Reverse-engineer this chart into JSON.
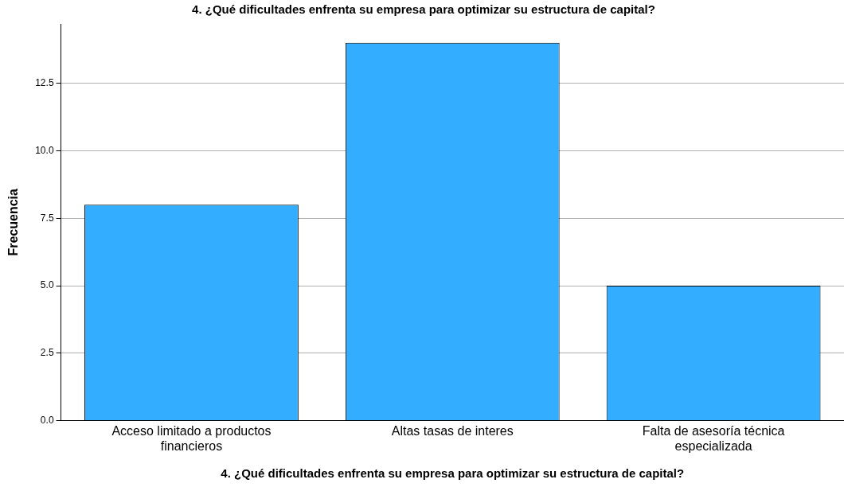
{
  "chart_data": {
    "type": "bar",
    "title": "4. ¿Qué dificultades enfrenta su empresa para optimizar su estructura de capital?",
    "xlabel": "4. ¿Qué dificultades enfrenta su empresa para optimizar su estructura de capital?",
    "ylabel": "Frecuencia",
    "categories": [
      "Acceso limitado a productos financieros",
      "Altas tasas de interes",
      "Falta de asesoría técnica especializada"
    ],
    "values": [
      8,
      14,
      5
    ],
    "color": "#33adff",
    "ylim": [
      0,
      14.7
    ],
    "yticks": [
      {
        "value": 0,
        "label": "0.0"
      },
      {
        "value": 2.5,
        "label": "2.5"
      },
      {
        "value": 5,
        "label": "5.0"
      },
      {
        "value": 7.5,
        "label": "7.5"
      },
      {
        "value": 10,
        "label": "10.0"
      },
      {
        "value": 12.5,
        "label": "12.5"
      }
    ],
    "grid": "y"
  }
}
